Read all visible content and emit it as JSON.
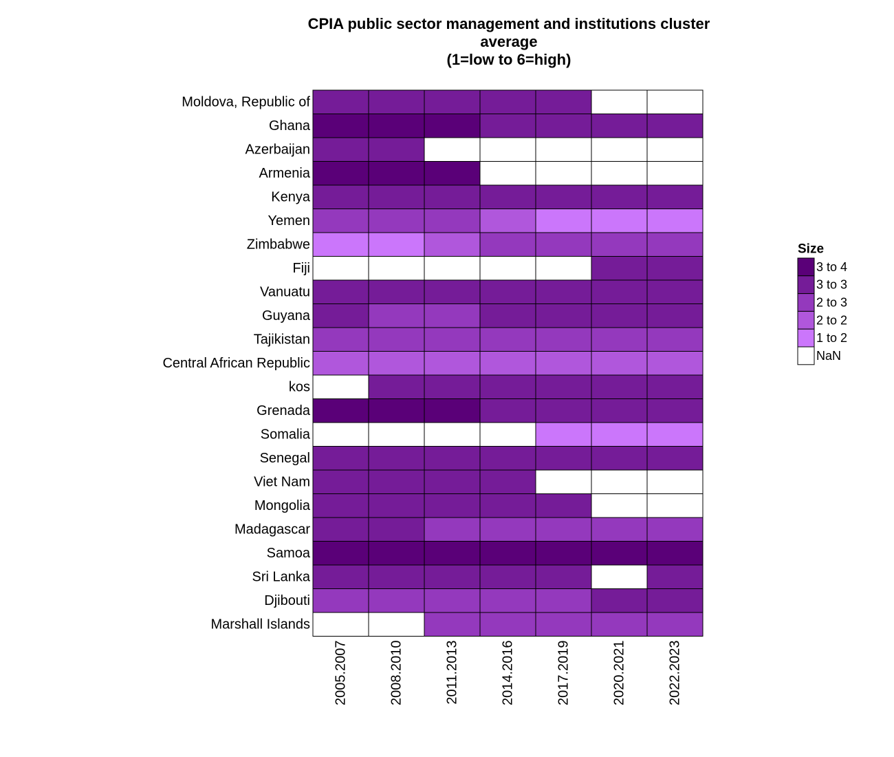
{
  "chart_data": {
    "type": "heatmap",
    "title": [
      "CPIA public sector management and institutions cluster",
      "average",
      "(1=low to 6=high)"
    ],
    "columns": [
      "2005.2007",
      "2008.2010",
      "2011.2013",
      "2014.2016",
      "2017.2019",
      "2020.2021",
      "2022.2023"
    ],
    "rows": [
      "Moldova, Republic of",
      "Ghana",
      "Azerbaijan",
      "Armenia",
      "Kenya",
      "Yemen",
      "Zimbabwe",
      "Fiji",
      "Vanuatu",
      "Guyana",
      "Tajikistan",
      "Central African Republic",
      "kos",
      "Grenada",
      "Somalia",
      "Senegal",
      "Viet Nam",
      "Mongolia",
      "Madagascar",
      "Samoa",
      "Sri Lanka",
      "Djibouti",
      "Marshall Islands"
    ],
    "values": [
      [
        3.1,
        3.1,
        3.1,
        3.1,
        3.1,
        null,
        null
      ],
      [
        3.6,
        3.6,
        3.6,
        3.1,
        3.1,
        3.1,
        3.1
      ],
      [
        3.1,
        3.1,
        null,
        null,
        null,
        null,
        null
      ],
      [
        3.6,
        3.6,
        3.6,
        null,
        null,
        null,
        null
      ],
      [
        3.1,
        3.1,
        3.1,
        3.1,
        3.1,
        3.1,
        3.1
      ],
      [
        2.6,
        2.6,
        2.6,
        2.2,
        1.8,
        1.8,
        1.8
      ],
      [
        1.8,
        1.8,
        2.2,
        2.6,
        2.6,
        2.6,
        2.6
      ],
      [
        null,
        null,
        null,
        null,
        null,
        3.1,
        3.1
      ],
      [
        3.1,
        3.1,
        3.1,
        3.1,
        3.1,
        3.1,
        3.1
      ],
      [
        3.1,
        2.6,
        2.6,
        3.1,
        3.1,
        3.1,
        3.1
      ],
      [
        2.6,
        2.6,
        2.6,
        2.6,
        2.6,
        2.6,
        2.6
      ],
      [
        2.2,
        2.2,
        2.2,
        2.2,
        2.2,
        2.2,
        2.2
      ],
      [
        null,
        3.1,
        3.1,
        3.1,
        3.1,
        3.1,
        3.1
      ],
      [
        3.6,
        3.6,
        3.6,
        3.1,
        3.1,
        3.1,
        3.1
      ],
      [
        null,
        null,
        null,
        null,
        1.8,
        1.8,
        1.8
      ],
      [
        3.1,
        3.1,
        3.1,
        3.1,
        3.1,
        3.1,
        3.1
      ],
      [
        3.1,
        3.1,
        3.1,
        3.1,
        null,
        null,
        null
      ],
      [
        3.1,
        3.1,
        3.1,
        3.1,
        3.1,
        null,
        null
      ],
      [
        3.1,
        3.1,
        2.6,
        2.6,
        2.6,
        2.6,
        2.6
      ],
      [
        3.6,
        3.6,
        3.6,
        3.6,
        3.6,
        3.6,
        3.6
      ],
      [
        3.1,
        3.1,
        3.1,
        3.1,
        3.1,
        null,
        3.1
      ],
      [
        2.6,
        2.6,
        2.6,
        2.6,
        2.6,
        3.1,
        3.1
      ],
      [
        null,
        null,
        2.6,
        2.6,
        2.6,
        2.6,
        2.6
      ]
    ],
    "legend": {
      "title": "Size",
      "bins": [
        {
          "label": "3 to 4",
          "min": 3.5,
          "max": 4,
          "color": "#5a0078"
        },
        {
          "label": "3 to 3",
          "min": 3.0,
          "max": 3.5,
          "color": "#751c98"
        },
        {
          "label": "2 to 3",
          "min": 2.5,
          "max": 3.0,
          "color": "#9439bd"
        },
        {
          "label": "2 to 2",
          "min": 2.0,
          "max": 2.5,
          "color": "#b057dc"
        },
        {
          "label": "1 to 2",
          "min": 1.0,
          "max": 2.0,
          "color": "#cb76fb"
        },
        {
          "label": "NaN",
          "min": null,
          "max": null,
          "color": "#ffffff"
        }
      ]
    },
    "grid": true
  }
}
